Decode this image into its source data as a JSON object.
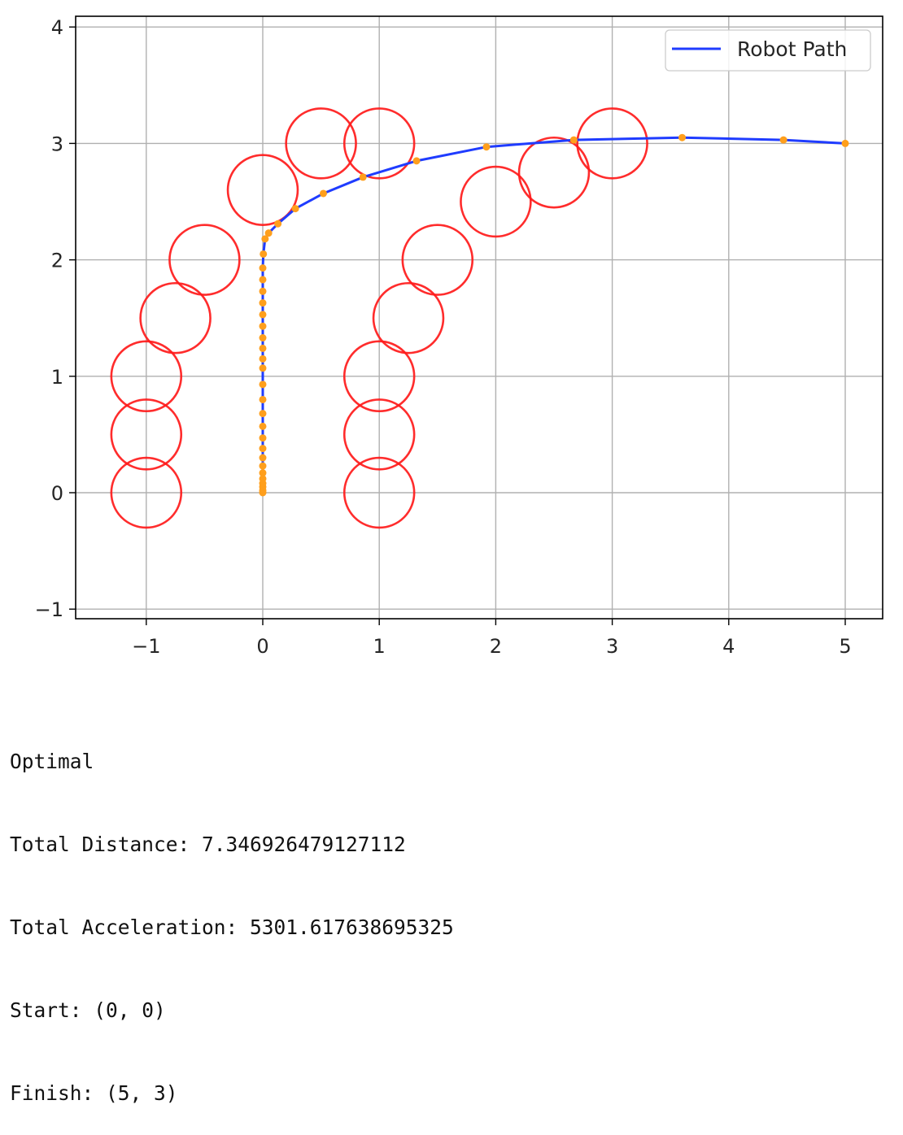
{
  "chart_data": {
    "type": "line",
    "title": "",
    "xlabel": "",
    "ylabel": "",
    "xlim": [
      -1.6,
      5.3
    ],
    "ylim": [
      -1.1,
      4.1
    ],
    "xticks": [
      -1,
      0,
      1,
      2,
      3,
      4,
      5
    ],
    "yticks": [
      -1,
      0,
      1,
      2,
      3,
      4
    ],
    "xtick_labels": [
      "−1",
      "0",
      "1",
      "2",
      "3",
      "4",
      "5"
    ],
    "ytick_labels": [
      "−1",
      "0",
      "1",
      "2",
      "3",
      "4"
    ],
    "grid": true,
    "legend": {
      "placement": "top-right",
      "entries": [
        "Robot Path"
      ]
    },
    "series": [
      {
        "name": "Robot Path",
        "color": "#1f3cff",
        "marker_color": "#ff9f1c",
        "x": [
          0,
          0,
          0,
          0,
          0,
          0,
          0,
          0,
          0,
          0,
          0,
          0,
          0,
          0,
          0,
          0,
          0,
          0,
          0,
          0,
          0,
          0,
          0,
          0,
          0.005,
          0.02,
          0.05,
          0.13,
          0.28,
          0.52,
          0.86,
          1.32,
          1.92,
          2.67,
          3.6,
          4.47,
          5
        ],
        "y": [
          0,
          0.02,
          0.05,
          0.08,
          0.12,
          0.17,
          0.23,
          0.3,
          0.38,
          0.47,
          0.57,
          0.68,
          0.8,
          0.93,
          1.07,
          1.15,
          1.24,
          1.33,
          1.43,
          1.53,
          1.63,
          1.73,
          1.83,
          1.93,
          2.05,
          2.18,
          2.23,
          2.31,
          2.44,
          2.57,
          2.71,
          2.85,
          2.97,
          3.03,
          3.05,
          3.03,
          3.0
        ]
      }
    ],
    "obstacles": {
      "color": "#ff1a1a",
      "radius": 0.3,
      "centers": [
        [
          -1,
          0
        ],
        [
          -1,
          0.5
        ],
        [
          -1,
          1
        ],
        [
          -0.75,
          1.5
        ],
        [
          -0.5,
          2
        ],
        [
          0,
          2.6
        ],
        [
          0.5,
          3
        ],
        [
          1,
          3
        ],
        [
          1,
          0
        ],
        [
          1,
          0.5
        ],
        [
          1,
          1
        ],
        [
          1.25,
          1.5
        ],
        [
          1.5,
          2
        ],
        [
          2,
          2.5
        ],
        [
          2.5,
          2.75
        ],
        [
          3,
          3
        ]
      ]
    }
  },
  "output": {
    "lines": [
      "Optimal",
      "Total Distance: 7.346926479127112",
      "Total Acceleration: 5301.617638695325",
      "Start: (0, 0)",
      "Finish: (5, 3)"
    ]
  }
}
